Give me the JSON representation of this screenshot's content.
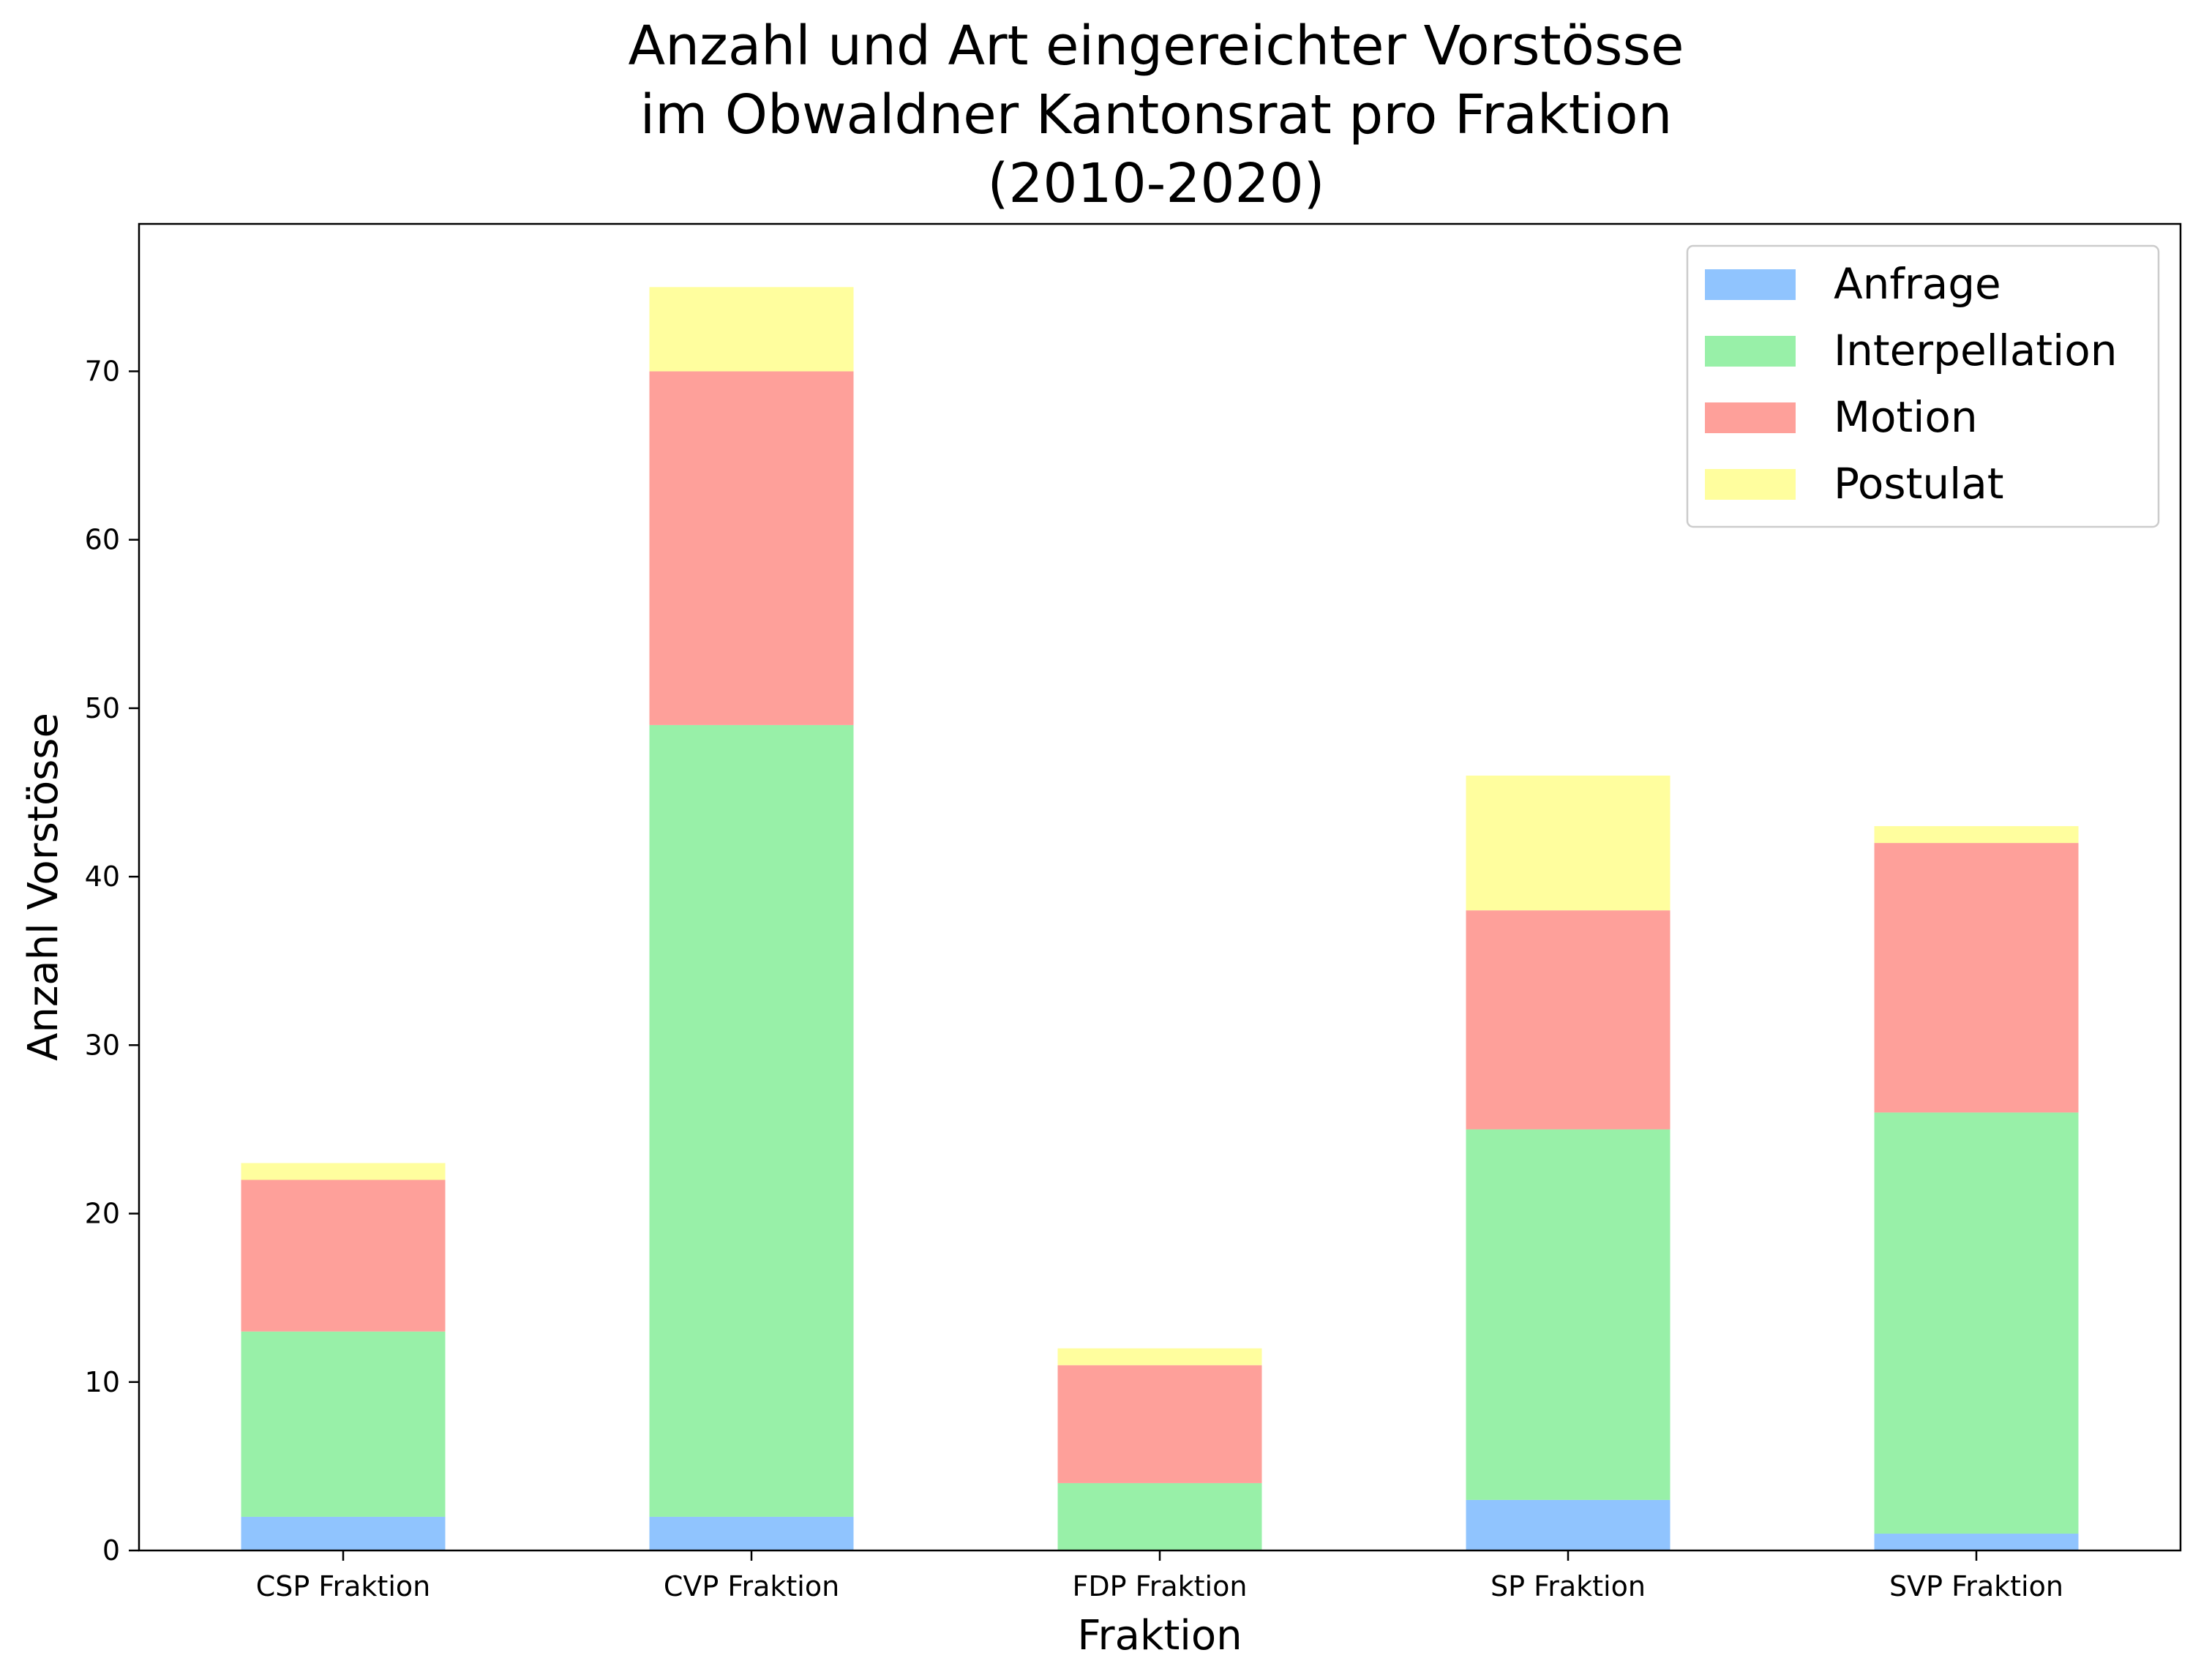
{
  "chart_data": {
    "type": "bar",
    "stacked": true,
    "title": [
      "Anzahl und Art eingereichter Vorstösse",
      "im Obwaldner Kantonsrat pro Fraktion",
      "(2010-2020)"
    ],
    "xlabel": "Fraktion",
    "ylabel": "Anzahl Vorstösse",
    "categories": [
      "CSP Fraktion",
      "CVP Fraktion",
      "FDP Fraktion",
      "SP Fraktion",
      "SVP Fraktion"
    ],
    "series": [
      {
        "name": "Anfrage",
        "color": "#90c4fe",
        "values": [
          2,
          2,
          0,
          3,
          1
        ]
      },
      {
        "name": "Interpellation",
        "color": "#98f0a8",
        "values": [
          11,
          47,
          4,
          22,
          25
        ]
      },
      {
        "name": "Motion",
        "color": "#fea09a",
        "values": [
          9,
          21,
          7,
          13,
          16
        ]
      },
      {
        "name": "Postulat",
        "color": "#fffe9e",
        "values": [
          1,
          5,
          1,
          8,
          1
        ]
      }
    ],
    "ylim": [
      0,
      78.75
    ],
    "yticks": [
      0,
      10,
      20,
      30,
      40,
      50,
      60,
      70
    ],
    "grid": false,
    "legend_position": "top-right"
  }
}
